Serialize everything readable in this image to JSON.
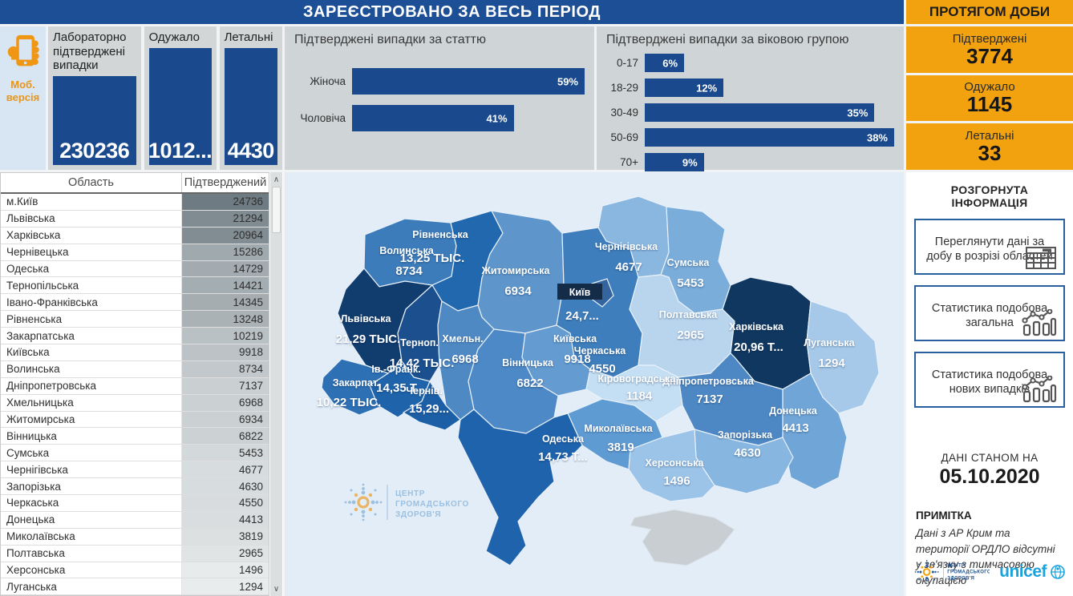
{
  "header": {
    "main_title": "ЗАРЕЄСТРОВАНО ЗА ВЕСЬ ПЕРІОД",
    "daily_title": "ПРОТЯГОМ ДОБИ"
  },
  "mobile": {
    "label": "Моб. версія"
  },
  "totals": [
    {
      "title": "Лабораторно підтверджені випадки",
      "value": "230236"
    },
    {
      "title": "Одужало",
      "value": "1012..."
    },
    {
      "title": "Летальні",
      "value": "4430"
    }
  ],
  "daily": [
    {
      "title": "Підтверджені",
      "value": "3774"
    },
    {
      "title": "Одужало",
      "value": "1145"
    },
    {
      "title": "Летальні",
      "value": "33"
    }
  ],
  "chart_data": [
    {
      "type": "bar",
      "orientation": "horizontal",
      "title": "Підтверджені випадки за статтю",
      "categories": [
        "Жіноча",
        "Чоловіча"
      ],
      "values": [
        59,
        41
      ],
      "value_labels": [
        "59%",
        "41%"
      ],
      "unit": "%",
      "xlim": [
        0,
        59
      ],
      "bar_color": "#1a4a8d"
    },
    {
      "type": "bar",
      "orientation": "horizontal",
      "title": "Підтверджені випадки за віковою групою",
      "categories": [
        "0-17",
        "18-29",
        "30-49",
        "50-69",
        "70+"
      ],
      "values": [
        6,
        12,
        35,
        38,
        9
      ],
      "value_labels": [
        "6%",
        "12%",
        "35%",
        "38%",
        "9%"
      ],
      "unit": "%",
      "xlim": [
        0,
        38
      ],
      "bar_color": "#1a4a8d"
    },
    {
      "type": "choropleth",
      "title": "Підтверджені випадки по областях",
      "regions": [
        {
          "id": "volyn",
          "name": "Волинська",
          "value": 8734,
          "value_label": "8734",
          "color": "#3d7cba"
        },
        {
          "id": "rivne",
          "name": "Рівненська",
          "value": 13248,
          "value_label": "13,25 ТЫС.",
          "color": "#2268ae"
        },
        {
          "id": "zhytomyr",
          "name": "Житомирська",
          "value": 6934,
          "value_label": "6934",
          "color": "#5e96cb"
        },
        {
          "id": "kyiv_obl",
          "name": "Київська",
          "value": 9918,
          "value_label": "9918",
          "color": "#3f7ebc"
        },
        {
          "id": "kyiv_city",
          "name": "Київ",
          "value": 24736,
          "value_label": "24,7...",
          "color": "#34659f"
        },
        {
          "id": "chernihiv",
          "name": "Чернігівська",
          "value": 4677,
          "value_label": "4677",
          "color": "#8ab7e0"
        },
        {
          "id": "sumy",
          "name": "Сумська",
          "value": 5453,
          "value_label": "5453",
          "color": "#7badda"
        },
        {
          "id": "lviv",
          "name": "Львівська",
          "value": 21294,
          "value_label": "21,29 ТЫС.",
          "color": "#113c6e"
        },
        {
          "id": "ternopil",
          "name": "Терноп.",
          "value": 14421,
          "value_label": "14,42 ТЫС.",
          "color": "#1b4f8e"
        },
        {
          "id": "khmelnytsky",
          "name": "Хмельн.",
          "value": 6968,
          "value_label": "6968",
          "color": "#4f89c4"
        },
        {
          "id": "vinnytsia",
          "name": "Вінницька",
          "value": 6822,
          "value_label": "6822",
          "color": "#4d89c6"
        },
        {
          "id": "cherkasy",
          "name": "Черкаська",
          "value": 4550,
          "value_label": "4550",
          "color": "#649bd0"
        },
        {
          "id": "poltava",
          "name": "Полтавська",
          "value": 2965,
          "value_label": "2965",
          "color": "#b9d5ee"
        },
        {
          "id": "kharkiv",
          "name": "Харківська",
          "value": 20964,
          "value_label": "20,96 Т...",
          "color": "#10375f"
        },
        {
          "id": "luhansk",
          "name": "Луганська",
          "value": 1294,
          "value_label": "1294",
          "color": "#a6c9e9"
        },
        {
          "id": "donetsk",
          "name": "Донецька",
          "value": 4413,
          "value_label": "4413",
          "color": "#70a5d7"
        },
        {
          "id": "dnipro",
          "name": "Дніпропетровська",
          "value": 7137,
          "value_label": "7137",
          "color": "#4e88c4"
        },
        {
          "id": "zaporizhzhia",
          "name": "Запорізька",
          "value": 4630,
          "value_label": "4630",
          "color": "#87b6e0"
        },
        {
          "id": "kirovohrad",
          "name": "Кіровоградська",
          "value": 1184,
          "value_label": "1184",
          "color": "#c4def3"
        },
        {
          "id": "mykolaiv",
          "name": "Миколаївська",
          "value": 3819,
          "value_label": "3819",
          "color": "#5f9bd3"
        },
        {
          "id": "odesa",
          "name": "Одеська",
          "value": 14729,
          "value_label": "14,73 Т...",
          "color": "#1e63ac"
        },
        {
          "id": "kherson",
          "name": "Херсонська",
          "value": 1496,
          "value_label": "1496",
          "color": "#9cc4e9"
        },
        {
          "id": "zakarpattia",
          "name": "Закарпат.",
          "value": 10219,
          "value_label": "10,22 ТЫС.",
          "color": "#2e70b4"
        },
        {
          "id": "ivano_frankivsk",
          "name": "Ів.-Франк.",
          "value": 14345,
          "value_label": "14,35 Т...",
          "color": "#1f63ab"
        },
        {
          "id": "chernivtsi",
          "name": "Чернів.",
          "value": 15286,
          "value_label": "15,29...",
          "color": "#1d5fa6"
        },
        {
          "id": "crimea",
          "name": "",
          "value": null,
          "value_label": "",
          "color": "#c9ced2"
        }
      ]
    }
  ],
  "table": {
    "headers": [
      "Область",
      "Підтверджений"
    ],
    "rows": [
      [
        "м.Київ",
        24736
      ],
      [
        "Львівська",
        21294
      ],
      [
        "Харківська",
        20964
      ],
      [
        "Чернівецька",
        15286
      ],
      [
        "Одеська",
        14729
      ],
      [
        "Тернопільська",
        14421
      ],
      [
        "Івано-Франківська",
        14345
      ],
      [
        "Рівненська",
        13248
      ],
      [
        "Закарпатська",
        10219
      ],
      [
        "Київська",
        9918
      ],
      [
        "Волинська",
        8734
      ],
      [
        "Дніпропетровська",
        7137
      ],
      [
        "Хмельницька",
        6968
      ],
      [
        "Житомирська",
        6934
      ],
      [
        "Вінницька",
        6822
      ],
      [
        "Сумська",
        5453
      ],
      [
        "Чернігівська",
        4677
      ],
      [
        "Запорізька",
        4630
      ],
      [
        "Черкаська",
        4550
      ],
      [
        "Донецька",
        4413
      ],
      [
        "Миколаївська",
        3819
      ],
      [
        "Полтавська",
        2965
      ],
      [
        "Херсонська",
        1496
      ],
      [
        "Луганська",
        1294
      ]
    ]
  },
  "map": {
    "watermark": {
      "line1": "ЦЕНТР",
      "line2": "ГРОМАДСЬКОГО",
      "line3": "ЗДОРОВ'Я"
    }
  },
  "info": {
    "section_title": "РОЗГОРНУТА ІНФОРМАЦІЯ",
    "buttons": [
      {
        "label": "Переглянути дані за добу в розрізі областей",
        "icon": "table-icon"
      },
      {
        "label": "Статистика подобова загальна",
        "icon": "line-chart-icon"
      },
      {
        "label": "Статистика подобова нових випадків",
        "icon": "line-chart-icon"
      }
    ],
    "as_of_label": "ДАНІ СТАНОМ НА",
    "as_of_date": "05.10.2020",
    "note_title": "ПРИМІТКА",
    "note_text": "Дані з АР Крим та території ОРДЛО відсутні у зв'язку з тимчасовою окупацією"
  },
  "footer": {
    "phc_lines": [
      "ЦЕНТР",
      "ГРОМАДСЬКОГО",
      "ЗДОРОВ'Я"
    ],
    "unicef_text": "unicef"
  },
  "icons": {
    "scroll_up": "∧",
    "scroll_down": "∨"
  },
  "colors": {
    "header_blue": "#1d4f96",
    "bar_blue": "#1a4a8d",
    "accent_orange": "#f2a20e",
    "panel_gray": "#cfd4d6",
    "map_bg": "#e2edf8",
    "crimea_gray": "#c9ced2",
    "unicef_blue": "#18a3dc"
  }
}
